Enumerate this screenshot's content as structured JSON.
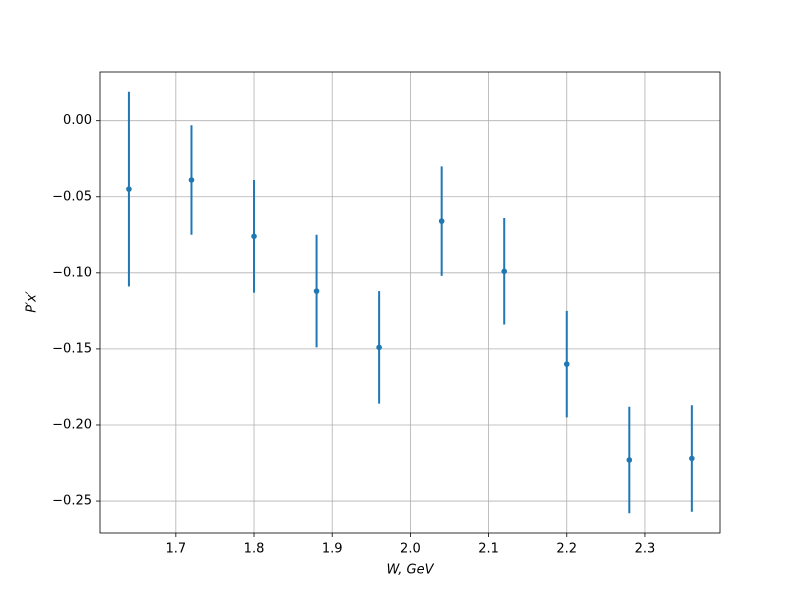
{
  "chart_data": {
    "type": "errorbar",
    "xlabel": "W, GeV",
    "ylabel": "P′x′",
    "x": [
      1.64,
      1.72,
      1.8,
      1.88,
      1.96,
      2.04,
      2.12,
      2.2,
      2.28,
      2.36
    ],
    "series": [
      {
        "color": "#1f77b4",
        "values": [
          -0.045,
          -0.039,
          -0.076,
          -0.112,
          -0.149,
          -0.066,
          -0.099,
          -0.16,
          -0.223,
          -0.222
        ],
        "errors": [
          0.064,
          0.036,
          0.037,
          0.037,
          0.037,
          0.036,
          0.035,
          0.035,
          0.035,
          0.035
        ]
      }
    ],
    "xlim": [
      1.603,
      2.396
    ],
    "xticks": [
      1.7,
      1.8,
      1.9,
      {
        "value": 2,
        "label": "2.0"
      },
      2.1,
      2.2,
      2.3
    ],
    "ylim": [
      -0.271,
      0.032
    ],
    "yticks": [
      {
        "value": 0,
        "label": "0.00"
      },
      {
        "value": -0.05,
        "label": "−0.05"
      },
      {
        "value": -0.1,
        "label": "−0.10"
      },
      {
        "value": -0.15,
        "label": "−0.15"
      },
      {
        "value": -0.2,
        "label": "−0.20"
      },
      {
        "value": -0.25,
        "label": "−0.25"
      }
    ],
    "grid": true
  }
}
